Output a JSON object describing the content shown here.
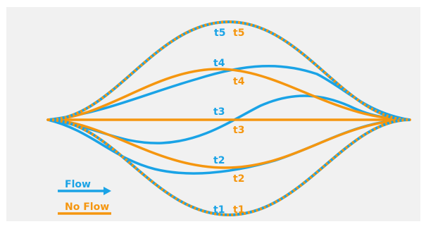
{
  "colors": {
    "flow": "#1aa3e6",
    "no_flow": "#f5960f",
    "background": "#f1f1f1"
  },
  "legend": {
    "flow": "Flow",
    "no_flow": "No Flow"
  },
  "labels": {
    "flow": {
      "t1": "t1",
      "t2": "t2",
      "t3": "t3",
      "t4": "t4",
      "t5": "t5"
    },
    "no_flow": {
      "t1": "t1",
      "t2": "t2",
      "t3": "t3",
      "t4": "t4",
      "t5": "t5"
    }
  }
}
